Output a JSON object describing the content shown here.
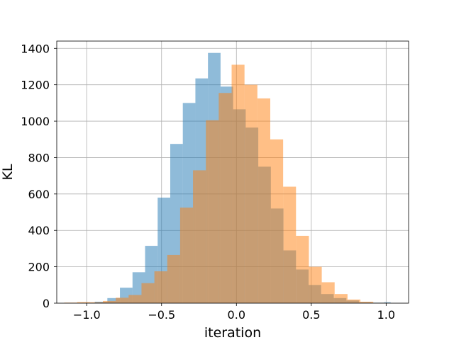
{
  "chart_data": {
    "type": "bar",
    "title": "",
    "xlabel": "iteration",
    "ylabel": "KL",
    "xlim": [
      -1.2,
      1.15
    ],
    "ylim": [
      0,
      1440
    ],
    "x_ticks": [
      -1.0,
      -0.5,
      0.0,
      0.5,
      1.0
    ],
    "x_tick_labels": [
      "−1.0",
      "−0.5",
      "0.0",
      "0.5",
      "1.0"
    ],
    "y_ticks": [
      0,
      200,
      400,
      600,
      800,
      1000,
      1200,
      1400
    ],
    "y_tick_labels": [
      "0",
      "200",
      "400",
      "600",
      "800",
      "1000",
      "1200",
      "1400"
    ],
    "grid": true,
    "series": [
      {
        "color": "#1f77b4",
        "opacity": 0.5,
        "bins": [
          [
            -1.03,
            -0.946,
            2
          ],
          [
            -0.946,
            -0.862,
            8
          ],
          [
            -0.862,
            -0.778,
            28
          ],
          [
            -0.778,
            -0.694,
            85
          ],
          [
            -0.694,
            -0.61,
            170
          ],
          [
            -0.61,
            -0.526,
            315
          ],
          [
            -0.526,
            -0.442,
            580
          ],
          [
            -0.442,
            -0.358,
            875
          ],
          [
            -0.358,
            -0.274,
            1100
          ],
          [
            -0.274,
            -0.19,
            1235
          ],
          [
            -0.19,
            -0.106,
            1375
          ],
          [
            -0.106,
            -0.022,
            1190
          ],
          [
            -0.022,
            0.062,
            1065
          ],
          [
            0.062,
            0.146,
            965
          ],
          [
            0.146,
            0.23,
            750
          ],
          [
            0.23,
            0.314,
            520
          ],
          [
            0.314,
            0.398,
            290
          ],
          [
            0.398,
            0.482,
            185
          ],
          [
            0.482,
            0.566,
            100
          ],
          [
            0.566,
            0.65,
            50
          ],
          [
            0.65,
            0.734,
            28
          ],
          [
            0.734,
            0.818,
            15
          ],
          [
            0.818,
            0.902,
            5
          ],
          [
            0.902,
            0.986,
            3
          ],
          [
            0.986,
            1.03,
            5
          ]
        ]
      },
      {
        "color": "#ff7f0e",
        "opacity": 0.5,
        "bins": [
          [
            -1.15,
            -1.064,
            3
          ],
          [
            -1.064,
            -0.978,
            6
          ],
          [
            -0.978,
            -0.892,
            5
          ],
          [
            -0.892,
            -0.806,
            12
          ],
          [
            -0.806,
            -0.72,
            30
          ],
          [
            -0.72,
            -0.634,
            45
          ],
          [
            -0.634,
            -0.548,
            110
          ],
          [
            -0.548,
            -0.462,
            175
          ],
          [
            -0.462,
            -0.376,
            265
          ],
          [
            -0.376,
            -0.29,
            525
          ],
          [
            -0.29,
            -0.204,
            730
          ],
          [
            -0.204,
            -0.118,
            1005
          ],
          [
            -0.118,
            -0.032,
            1155
          ],
          [
            -0.032,
            0.054,
            1310
          ],
          [
            0.054,
            0.14,
            1200
          ],
          [
            0.14,
            0.226,
            1125
          ],
          [
            0.226,
            0.312,
            900
          ],
          [
            0.312,
            0.398,
            640
          ],
          [
            0.398,
            0.484,
            370
          ],
          [
            0.484,
            0.57,
            200
          ],
          [
            0.57,
            0.656,
            115
          ],
          [
            0.656,
            0.742,
            50
          ],
          [
            0.742,
            0.828,
            20
          ],
          [
            0.828,
            0.914,
            8
          ],
          [
            0.914,
            1.0,
            2
          ]
        ]
      }
    ]
  }
}
